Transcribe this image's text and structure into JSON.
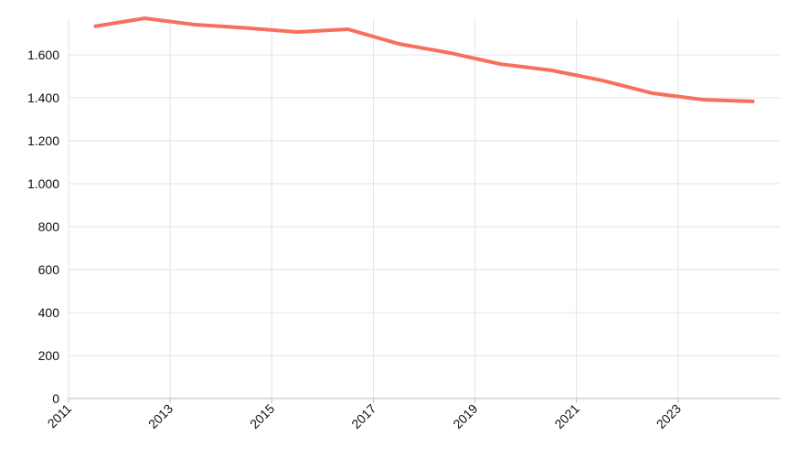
{
  "chart_data": {
    "type": "line",
    "x": [
      2011.5,
      2012.5,
      2013.5,
      2014.5,
      2015.5,
      2016.5,
      2017.5,
      2018.5,
      2019.5,
      2020.5,
      2021.5,
      2022.5,
      2023.5,
      2024.5
    ],
    "series": [
      {
        "color": "#f96f5d",
        "values": [
          1732,
          1770,
          1740,
          1725,
          1706,
          1719,
          1651,
          1609,
          1557,
          1528,
          1481,
          1421,
          1391,
          1383
        ]
      }
    ],
    "xlim": [
      2011,
      2025
    ],
    "xticks": [
      2011,
      2013,
      2015,
      2017,
      2019,
      2021,
      2023
    ],
    "ylim": [
      0,
      1770
    ],
    "yticks": [
      0,
      200,
      400,
      600,
      800,
      {
        "value": 1000,
        "label": "1.000"
      },
      {
        "value": 1200,
        "label": "1.200"
      },
      {
        "value": 1400,
        "label": "1.400"
      },
      {
        "value": 1600,
        "label": "1.600"
      }
    ],
    "grid": true
  }
}
